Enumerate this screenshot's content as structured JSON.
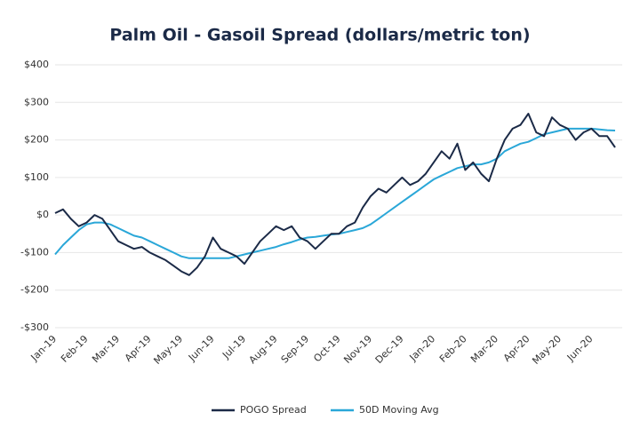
{
  "chart_data": {
    "type": "line",
    "title": "Palm Oil - Gasoil Spread (dollars/metric ton)",
    "categories": [
      "Jan-19",
      null,
      null,
      null,
      "Feb-19",
      null,
      null,
      null,
      "Mar-19",
      null,
      null,
      null,
      "Apr-19",
      null,
      null,
      null,
      "May-19",
      null,
      null,
      null,
      "Jun-19",
      null,
      null,
      null,
      "Jul-19",
      null,
      null,
      null,
      "Aug-19",
      null,
      null,
      null,
      "Sep-19",
      null,
      null,
      null,
      "Oct-19",
      null,
      null,
      null,
      "Nov-19",
      null,
      null,
      null,
      "Dec-19",
      null,
      null,
      null,
      "Jan-20",
      null,
      null,
      null,
      "Feb-20",
      null,
      null,
      null,
      "Mar-20",
      null,
      null,
      null,
      "Apr-20",
      null,
      null,
      null,
      "May-20",
      null,
      null,
      null,
      "Jun-20",
      null,
      null,
      null
    ],
    "series": [
      {
        "name": "POGO Spread",
        "color": "#1b2a47",
        "values": [
          5,
          15,
          -10,
          -30,
          -20,
          0,
          -10,
          -40,
          -70,
          -80,
          -90,
          -85,
          -100,
          -110,
          -120,
          -135,
          -150,
          -160,
          -140,
          -110,
          -60,
          -90,
          -100,
          -110,
          -130,
          -100,
          -70,
          -50,
          -30,
          -40,
          -30,
          -60,
          -70,
          -90,
          -70,
          -50,
          -50,
          -30,
          -20,
          20,
          50,
          70,
          60,
          80,
          100,
          80,
          90,
          110,
          140,
          170,
          150,
          190,
          120,
          140,
          110,
          90,
          150,
          200,
          230,
          240,
          270,
          220,
          210,
          260,
          240,
          230,
          200,
          220,
          230,
          210,
          210,
          180
        ]
      },
      {
        "name": "50D Moving Avg",
        "color": "#2aa7d8",
        "values": [
          -105,
          -80,
          -60,
          -40,
          -25,
          -20,
          -20,
          -25,
          -35,
          -45,
          -55,
          -60,
          -70,
          -80,
          -90,
          -100,
          -110,
          -115,
          -115,
          -115,
          -115,
          -115,
          -115,
          -110,
          -105,
          -100,
          -95,
          -90,
          -85,
          -78,
          -72,
          -65,
          -60,
          -58,
          -55,
          -52,
          -50,
          -45,
          -40,
          -35,
          -25,
          -10,
          5,
          20,
          35,
          50,
          65,
          80,
          95,
          105,
          115,
          125,
          130,
          135,
          135,
          140,
          150,
          170,
          180,
          190,
          195,
          205,
          215,
          220,
          225,
          230,
          230,
          230,
          230,
          228,
          226,
          225
        ]
      }
    ],
    "ylim": [
      -300,
      400
    ],
    "yticks": [
      {
        "value": -300,
        "label": "-$300"
      },
      {
        "value": -200,
        "label": "-$200"
      },
      {
        "value": -100,
        "label": "-$100"
      },
      {
        "value": 0,
        "label": "$0"
      },
      {
        "value": 100,
        "label": "$100"
      },
      {
        "value": 200,
        "label": "$200"
      },
      {
        "value": 300,
        "label": "$300"
      },
      {
        "value": 400,
        "label": "$400"
      }
    ],
    "grid": true
  }
}
